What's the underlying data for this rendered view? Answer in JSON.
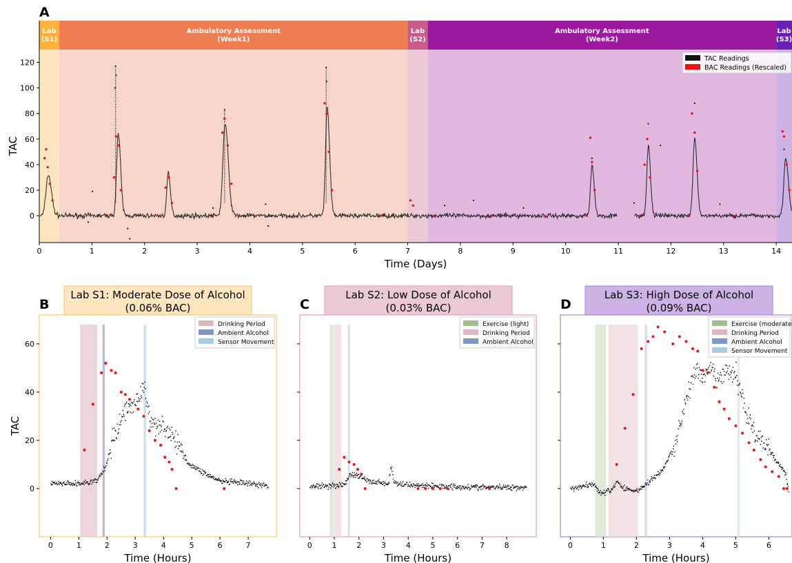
{
  "chart_data": [
    {
      "panel": "A",
      "type": "scatter",
      "xlabel": "Time (Days)",
      "ylabel": "TAC",
      "xlim": [
        0,
        14.3
      ],
      "ylim": [
        -21,
        130
      ],
      "x_ticks": [
        0,
        1,
        2,
        3,
        4,
        5,
        6,
        7,
        8,
        9,
        10,
        11,
        12,
        13,
        14
      ],
      "y_ticks": [
        0,
        20,
        40,
        60,
        80,
        100,
        120
      ],
      "legend": [
        "TAC Readings",
        "BAC Readings (Rescaled)"
      ],
      "legend_position": "top-right",
      "phases": [
        {
          "title": "Lab",
          "subtitle": "(S1)",
          "start": 0,
          "end": 0.38,
          "header": "#FBB13C",
          "fill": "#FDE5C0"
        },
        {
          "title": "Ambulatory Assessment",
          "subtitle": "(Week1)",
          "start": 0.38,
          "end": 7.0,
          "header": "#EE7E52",
          "fill": "#F8D6CA"
        },
        {
          "title": "Lab",
          "subtitle": "(S2)",
          "start": 7.0,
          "end": 7.38,
          "header": "#C85C8A",
          "fill": "#EBC9D6"
        },
        {
          "title": "Ambulatory Assessment",
          "subtitle": "(Week2)",
          "start": 7.38,
          "end": 14.0,
          "header": "#9C1A9E",
          "fill": "#E0B8E0"
        },
        {
          "title": "Lab",
          "subtitle": "(S3)",
          "start": 14.0,
          "end": 14.3,
          "header": "#6A1FB3",
          "fill": "#CDB3E5"
        }
      ],
      "tac_peaks": [
        {
          "x": 0.17,
          "h": 32,
          "w": 0.06
        },
        {
          "x": 1.5,
          "h": 64,
          "w": 0.045
        },
        {
          "x": 2.45,
          "h": 33,
          "w": 0.04
        },
        {
          "x": 3.53,
          "h": 72,
          "w": 0.06
        },
        {
          "x": 5.47,
          "h": 85,
          "w": 0.045
        },
        {
          "x": 10.5,
          "h": 40,
          "w": 0.04
        },
        {
          "x": 11.57,
          "h": 55,
          "w": 0.04
        },
        {
          "x": 12.45,
          "h": 60,
          "w": 0.045
        },
        {
          "x": 14.18,
          "h": 45,
          "w": 0.05
        }
      ],
      "bac_points": [
        {
          "x": 0.1,
          "y": 45
        },
        {
          "x": 0.13,
          "y": 52
        },
        {
          "x": 0.16,
          "y": 38
        },
        {
          "x": 0.2,
          "y": 25
        },
        {
          "x": 0.25,
          "y": 12
        },
        {
          "x": 1.42,
          "y": 30
        },
        {
          "x": 1.46,
          "y": 62
        },
        {
          "x": 1.5,
          "y": 55
        },
        {
          "x": 1.55,
          "y": 20
        },
        {
          "x": 2.4,
          "y": 22
        },
        {
          "x": 2.46,
          "y": 30
        },
        {
          "x": 2.52,
          "y": 10
        },
        {
          "x": 3.48,
          "y": 65
        },
        {
          "x": 3.52,
          "y": 76
        },
        {
          "x": 3.58,
          "y": 55
        },
        {
          "x": 3.65,
          "y": 25
        },
        {
          "x": 5.42,
          "y": 88
        },
        {
          "x": 5.46,
          "y": 80
        },
        {
          "x": 5.5,
          "y": 50
        },
        {
          "x": 5.56,
          "y": 20
        },
        {
          "x": 7.05,
          "y": 12
        },
        {
          "x": 7.1,
          "y": 8
        },
        {
          "x": 10.47,
          "y": 61
        },
        {
          "x": 10.5,
          "y": 42
        },
        {
          "x": 10.55,
          "y": 20
        },
        {
          "x": 11.5,
          "y": 40
        },
        {
          "x": 11.55,
          "y": 60
        },
        {
          "x": 11.6,
          "y": 30
        },
        {
          "x": 12.4,
          "y": 80
        },
        {
          "x": 12.45,
          "y": 65
        },
        {
          "x": 12.5,
          "y": 35
        },
        {
          "x": 14.12,
          "y": 66
        },
        {
          "x": 14.15,
          "y": 62
        },
        {
          "x": 14.2,
          "y": 40
        },
        {
          "x": 14.25,
          "y": 20
        }
      ]
    },
    {
      "panel": "B",
      "type": "scatter",
      "title": "Lab S1: Moderate Dose of Alcohol\n(0.06% BAC)",
      "title_bg": "#FDE5C0",
      "frame": "#F6C86A",
      "xlabel": "Time (Hours)",
      "ylabel": "TAC",
      "xlim": [
        -0.4,
        8.0
      ],
      "ylim": [
        -20,
        72
      ],
      "x_ticks": [
        0,
        1,
        2,
        3,
        4,
        5,
        6,
        7
      ],
      "y_ticks": [
        0,
        20,
        40,
        60
      ],
      "legend": [
        "Drinking Period",
        "Ambient Alcohol",
        "Sensor Movement"
      ],
      "legend_position": "top-right",
      "bands": [
        {
          "start": 1.05,
          "end": 1.65,
          "color": "#E7CCD2"
        },
        {
          "start": 1.84,
          "end": 1.92,
          "color": "#9FB0D6"
        },
        {
          "start": 3.3,
          "end": 3.38,
          "color": "#BFD8E6"
        }
      ],
      "tac_curve": [
        [
          0,
          2
        ],
        [
          1.0,
          2
        ],
        [
          1.6,
          3
        ],
        [
          1.9,
          8
        ],
        [
          2.2,
          20
        ],
        [
          2.6,
          32
        ],
        [
          3.0,
          36
        ],
        [
          3.3,
          42
        ],
        [
          3.5,
          28
        ],
        [
          4.0,
          26
        ],
        [
          4.5,
          18
        ],
        [
          4.9,
          10
        ],
        [
          5.5,
          6
        ],
        [
          6.0,
          3
        ],
        [
          7.0,
          2
        ],
        [
          7.7,
          1
        ]
      ],
      "bac_points": [
        [
          1.2,
          16
        ],
        [
          1.5,
          35
        ],
        [
          1.8,
          48
        ],
        [
          1.95,
          52
        ],
        [
          2.15,
          49
        ],
        [
          2.3,
          48
        ],
        [
          2.5,
          40
        ],
        [
          2.65,
          39
        ],
        [
          2.8,
          37
        ],
        [
          3.1,
          33
        ],
        [
          3.3,
          30
        ],
        [
          3.5,
          24
        ],
        [
          3.7,
          20
        ],
        [
          3.9,
          18
        ],
        [
          4.05,
          13
        ],
        [
          4.2,
          11
        ],
        [
          4.3,
          8
        ],
        [
          4.45,
          0
        ],
        [
          6.15,
          0
        ]
      ]
    },
    {
      "panel": "C",
      "type": "scatter",
      "title": "Lab S2: Low Dose of Alcohol\n(0.03% BAC)",
      "title_bg": "#EBC9D6",
      "frame": "#E89AB5",
      "xlabel": "Time (Hours)",
      "xlim": [
        -0.4,
        9.2
      ],
      "ylim": [
        -20,
        72
      ],
      "x_ticks": [
        0,
        1,
        2,
        3,
        4,
        5,
        6,
        7,
        8
      ],
      "y_ticks": [
        0,
        20,
        40,
        60
      ],
      "legend": [
        "Exercise (light)",
        "Drinking Period",
        "Ambient Alcohol"
      ],
      "legend_position": "top-right",
      "bands": [
        {
          "start": 0.82,
          "end": 0.96,
          "color": "#D9E4CE"
        },
        {
          "start": 0.98,
          "end": 1.28,
          "color": "#F0DCE0"
        },
        {
          "start": 1.55,
          "end": 1.63,
          "color": "#C9D3EA"
        }
      ],
      "tac_curve": [
        [
          0,
          1
        ],
        [
          1.4,
          1.5
        ],
        [
          1.6,
          6
        ],
        [
          2.0,
          5
        ],
        [
          2.4,
          3
        ],
        [
          3.2,
          2
        ],
        [
          3.3,
          10
        ],
        [
          3.4,
          2
        ],
        [
          5.0,
          1
        ],
        [
          7.0,
          0.5
        ],
        [
          8.8,
          0.5
        ]
      ],
      "bac_points": [
        [
          1.2,
          8
        ],
        [
          1.4,
          13
        ],
        [
          1.6,
          11
        ],
        [
          1.8,
          10
        ],
        [
          1.95,
          8
        ],
        [
          2.1,
          6
        ],
        [
          2.25,
          0
        ],
        [
          4.4,
          0
        ],
        [
          4.7,
          0
        ],
        [
          5.0,
          0
        ],
        [
          5.3,
          0
        ],
        [
          5.6,
          0
        ],
        [
          7.3,
          0
        ]
      ]
    },
    {
      "panel": "D",
      "type": "scatter",
      "title": "Lab S3: High Dose of Alcohol\n(0.09% BAC)",
      "title_bg": "#CDB3E5",
      "frame": "#A582D8",
      "xlabel": "Time (Hours)",
      "xlim": [
        -0.3,
        6.7
      ],
      "ylim": [
        -20,
        72
      ],
      "x_ticks": [
        0,
        1,
        2,
        3,
        4,
        5,
        6
      ],
      "y_ticks": [
        0,
        20,
        40,
        60
      ],
      "legend": [
        "Exercise (moderate)",
        "Drinking Period",
        "Ambient Alcohol",
        "Sensor Movement"
      ],
      "legend_position": "top-right",
      "bands": [
        {
          "start": 0.75,
          "end": 1.08,
          "color": "#D9E4CE"
        },
        {
          "start": 1.15,
          "end": 2.05,
          "color": "#F0DCE0"
        },
        {
          "start": 2.25,
          "end": 2.32,
          "color": "#C9D3EA"
        },
        {
          "start": 5.05,
          "end": 5.12,
          "color": "#D6E6EE"
        }
      ],
      "tac_curve": [
        [
          0,
          0
        ],
        [
          0.7,
          2
        ],
        [
          0.9,
          -2
        ],
        [
          1.2,
          -1
        ],
        [
          1.4,
          3
        ],
        [
          1.6,
          0
        ],
        [
          2.0,
          -1
        ],
        [
          2.3,
          2
        ],
        [
          2.8,
          8
        ],
        [
          3.2,
          20
        ],
        [
          3.5,
          38
        ],
        [
          3.8,
          50
        ],
        [
          4.0,
          44
        ],
        [
          4.2,
          50
        ],
        [
          4.4,
          45
        ],
        [
          4.7,
          48
        ],
        [
          5.0,
          47
        ],
        [
          5.3,
          32
        ],
        [
          5.6,
          22
        ],
        [
          6.0,
          16
        ],
        [
          6.3,
          10
        ],
        [
          6.5,
          6
        ],
        [
          6.6,
          -2
        ]
      ],
      "bac_points": [
        [
          1.4,
          10
        ],
        [
          1.65,
          25
        ],
        [
          1.9,
          39
        ],
        [
          2.15,
          58
        ],
        [
          2.35,
          61
        ],
        [
          2.5,
          63
        ],
        [
          2.65,
          67
        ],
        [
          2.85,
          65
        ],
        [
          3.1,
          60
        ],
        [
          3.3,
          63
        ],
        [
          3.5,
          61
        ],
        [
          3.7,
          58
        ],
        [
          3.85,
          57
        ],
        [
          4.0,
          49
        ],
        [
          4.15,
          48
        ],
        [
          4.35,
          42
        ],
        [
          4.5,
          36
        ],
        [
          4.65,
          33
        ],
        [
          4.8,
          29
        ],
        [
          5.0,
          26
        ],
        [
          5.2,
          23
        ],
        [
          5.4,
          19
        ],
        [
          5.55,
          16
        ],
        [
          5.75,
          12
        ],
        [
          5.9,
          9
        ],
        [
          6.1,
          7
        ],
        [
          6.3,
          5
        ],
        [
          6.45,
          0
        ],
        [
          6.55,
          0
        ]
      ]
    }
  ],
  "colors": {
    "tac": "#111111",
    "bac": "#EE1111",
    "legend_ambient": "#8096C4",
    "legend_drinking": "#DDB8BF",
    "legend_sensor": "#A7CCDC",
    "legend_exercise": "#A3BE8C"
  }
}
